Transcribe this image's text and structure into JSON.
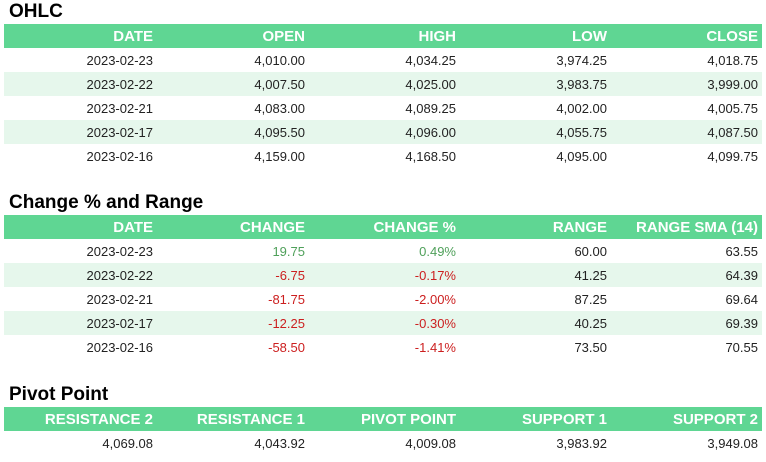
{
  "ohlc": {
    "title": "OHLC",
    "headers": [
      "DATE",
      "OPEN",
      "HIGH",
      "LOW",
      "CLOSE"
    ],
    "rows": [
      [
        "2023-02-23",
        "4,010.00",
        "4,034.25",
        "3,974.25",
        "4,018.75"
      ],
      [
        "2023-02-22",
        "4,007.50",
        "4,025.00",
        "3,983.75",
        "3,999.00"
      ],
      [
        "2023-02-21",
        "4,083.00",
        "4,089.25",
        "4,002.00",
        "4,005.75"
      ],
      [
        "2023-02-17",
        "4,095.50",
        "4,096.00",
        "4,055.75",
        "4,087.50"
      ],
      [
        "2023-02-16",
        "4,159.00",
        "4,168.50",
        "4,095.00",
        "4,099.75"
      ]
    ]
  },
  "change": {
    "title": "Change % and Range",
    "headers": [
      "DATE",
      "CHANGE",
      "CHANGE %",
      "RANGE",
      "RANGE SMA (14)"
    ],
    "rows": [
      [
        "2023-02-23",
        "19.75",
        "0.49%",
        "60.00",
        "63.55"
      ],
      [
        "2023-02-22",
        "-6.75",
        "-0.17%",
        "41.25",
        "64.39"
      ],
      [
        "2023-02-21",
        "-81.75",
        "-2.00%",
        "87.25",
        "69.64"
      ],
      [
        "2023-02-17",
        "-12.25",
        "-0.30%",
        "40.25",
        "69.39"
      ],
      [
        "2023-02-16",
        "-58.50",
        "-1.41%",
        "73.50",
        "70.55"
      ]
    ],
    "colors": {
      "positive": "#4fa05a",
      "negative": "#cc1f1f"
    }
  },
  "pivot": {
    "title": "Pivot Point",
    "headers": [
      "RESISTANCE 2",
      "RESISTANCE 1",
      "PIVOT POINT",
      "SUPPORT 1",
      "SUPPORT 2"
    ],
    "values": [
      "4,069.08",
      "4,043.92",
      "4,009.08",
      "3,983.92",
      "3,949.08"
    ]
  },
  "theme": {
    "header_bg": "#5fd693",
    "alt_row_bg": "#e6f7ec"
  }
}
